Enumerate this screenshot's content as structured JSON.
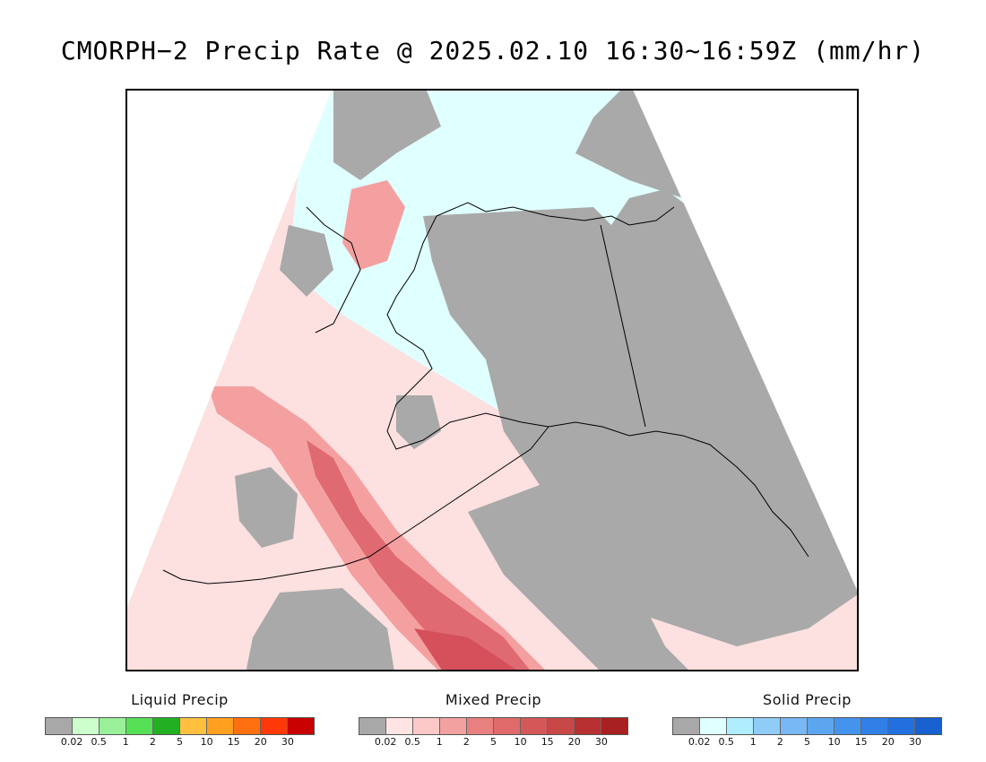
{
  "title": "CMORPH−2 Precip Rate @ 2025.02.10 16:30~16:59Z (mm/hr)",
  "map": {
    "colors": {
      "no_precip": "#a9a9a9",
      "solid_light": "#e0ffff",
      "mixed_light": "#fde0e0",
      "mixed_mid": "#f4a0a0",
      "mixed_high": "#e06a72",
      "mixed_max": "#d5505a",
      "coastline": "#000000"
    }
  },
  "legends": [
    {
      "title": "Liquid Precip",
      "colors": [
        "#a8a8a8",
        "#ccffcc",
        "#99f099",
        "#55e055",
        "#22b022",
        "#ffc040",
        "#ffa020",
        "#ff7010",
        "#ff3808",
        "#c80000"
      ],
      "ticks": [
        "0.02",
        "0.5",
        "1",
        "2",
        "5",
        "10",
        "15",
        "20",
        "30"
      ]
    },
    {
      "title": "Mixed Precip",
      "colors": [
        "#a8a8a8",
        "#ffe4e4",
        "#fcc8c8",
        "#f2a0a0",
        "#e88080",
        "#e06a6a",
        "#d55858",
        "#c84848",
        "#b83030",
        "#a82020"
      ],
      "ticks": [
        "0.02",
        "0.5",
        "1",
        "2",
        "5",
        "10",
        "15",
        "20",
        "30"
      ]
    },
    {
      "title": "Solid Precip",
      "colors": [
        "#a8a8a8",
        "#e0ffff",
        "#b0eeff",
        "#90ccf8",
        "#78b8f4",
        "#5ca6f0",
        "#4494ee",
        "#3080e8",
        "#2270e0",
        "#1860d0"
      ],
      "ticks": [
        "0.02",
        "0.5",
        "1",
        "2",
        "5",
        "10",
        "15",
        "20",
        "30"
      ]
    }
  ]
}
